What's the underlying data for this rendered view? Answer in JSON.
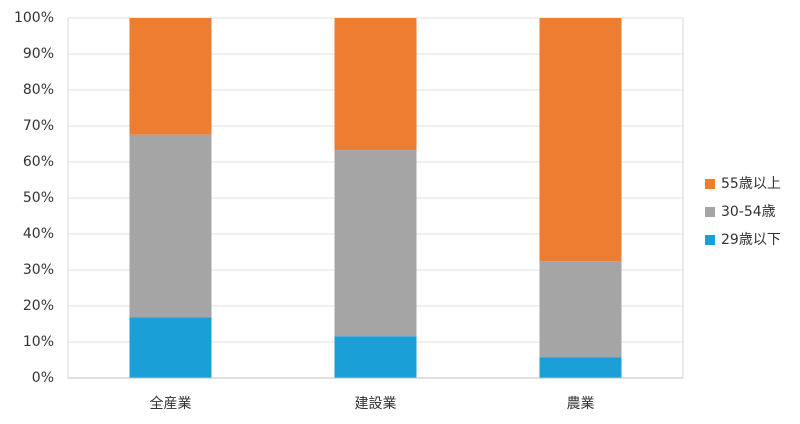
{
  "chart_data": {
    "type": "stacked_bar",
    "categories": [
      "全産業",
      "建設業",
      "農業"
    ],
    "series": [
      {
        "name": "29歳以下",
        "color": "#1a9fd6",
        "values": [
          16.8,
          11.6,
          5.7
        ]
      },
      {
        "name": "30-54歳",
        "color": "#a5a5a5",
        "values": [
          50.8,
          51.7,
          26.7
        ]
      },
      {
        "name": "55歳以上",
        "color": "#ed7d31",
        "values": [
          32.4,
          36.7,
          67.6
        ]
      }
    ],
    "ylim": [
      0,
      100
    ],
    "yticks": [
      {
        "value": 0,
        "label": "0%"
      },
      {
        "value": 10,
        "label": "10%"
      },
      {
        "value": 20,
        "label": "20%"
      },
      {
        "value": 30,
        "label": "30%"
      },
      {
        "value": 40,
        "label": "40%"
      },
      {
        "value": 50,
        "label": "50%"
      },
      {
        "value": 60,
        "label": "60%"
      },
      {
        "value": 70,
        "label": "70%"
      },
      {
        "value": 80,
        "label": "80%"
      },
      {
        "value": 90,
        "label": "90%"
      },
      {
        "value": 100,
        "label": "100%"
      }
    ],
    "grid": true,
    "legend": "right"
  }
}
